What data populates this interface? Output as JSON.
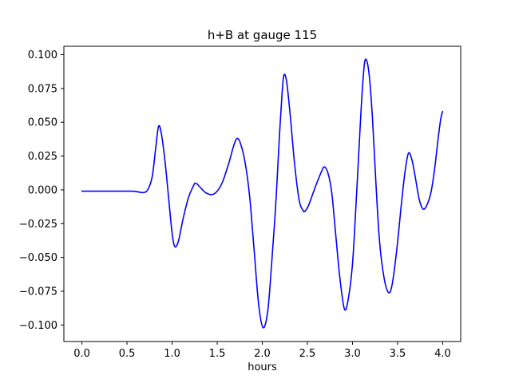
{
  "chart_data": {
    "type": "line",
    "title": "h+B at gauge 115",
    "xlabel": "hours",
    "ylabel": "",
    "grid": false,
    "legend": null,
    "line_color": "#0000ff",
    "line_width": 1.6,
    "background_color": "#ffffff",
    "axis_color": "#000000",
    "xlim": [
      -0.2,
      4.2
    ],
    "ylim": [
      -0.1122,
      0.1062
    ],
    "x_ticks": [
      0.0,
      0.5,
      1.0,
      1.5,
      2.0,
      2.5,
      3.0,
      3.5,
      4.0
    ],
    "x_tick_labels": [
      "0.0",
      "0.5",
      "1.0",
      "1.5",
      "2.0",
      "2.5",
      "3.0",
      "3.5",
      "4.0"
    ],
    "y_ticks": [
      0.1,
      0.075,
      0.05,
      0.025,
      0.0,
      -0.025,
      -0.05,
      -0.075,
      -0.1
    ],
    "y_tick_labels": [
      "0.100",
      "0.075",
      "0.050",
      "0.025",
      "0.000",
      "−0.025",
      "−0.050",
      "−0.075",
      "−0.100"
    ],
    "series": [
      {
        "name": "h+B",
        "x": [
          0.0,
          0.3,
          0.55,
          0.62,
          0.68,
          0.73,
          0.78,
          0.82,
          0.85,
          0.88,
          0.92,
          0.96,
          1.0,
          1.03,
          1.07,
          1.12,
          1.18,
          1.23,
          1.26,
          1.31,
          1.37,
          1.44,
          1.5,
          1.56,
          1.63,
          1.68,
          1.72,
          1.76,
          1.81,
          1.86,
          1.91,
          1.96,
          2.01,
          2.06,
          2.1,
          2.15,
          2.19,
          2.22,
          2.24,
          2.27,
          2.31,
          2.36,
          2.41,
          2.45,
          2.47,
          2.51,
          2.56,
          2.61,
          2.66,
          2.69,
          2.73,
          2.77,
          2.81,
          2.86,
          2.91,
          2.95,
          3.0,
          3.04,
          3.08,
          3.11,
          3.14,
          3.18,
          3.22,
          3.26,
          3.3,
          3.35,
          3.4,
          3.44,
          3.49,
          3.54,
          3.58,
          3.62,
          3.66,
          3.7,
          3.74,
          3.78,
          3.82,
          3.87,
          3.91,
          3.95,
          3.98,
          4.0
        ],
        "y": [
          -0.001,
          -0.001,
          -0.001,
          -0.0015,
          -0.002,
          0.0,
          0.01,
          0.032,
          0.047,
          0.042,
          0.022,
          -0.005,
          -0.032,
          -0.042,
          -0.038,
          -0.022,
          -0.006,
          0.002,
          0.005,
          0.002,
          -0.002,
          -0.0035,
          -0.001,
          0.006,
          0.02,
          0.032,
          0.038,
          0.034,
          0.02,
          -0.005,
          -0.045,
          -0.085,
          -0.102,
          -0.09,
          -0.058,
          -0.01,
          0.04,
          0.072,
          0.085,
          0.08,
          0.055,
          0.018,
          -0.008,
          -0.015,
          -0.016,
          -0.012,
          -0.003,
          0.006,
          0.014,
          0.017,
          0.012,
          -0.002,
          -0.03,
          -0.065,
          -0.088,
          -0.082,
          -0.055,
          -0.01,
          0.04,
          0.075,
          0.096,
          0.088,
          0.055,
          0.005,
          -0.038,
          -0.065,
          -0.076,
          -0.07,
          -0.045,
          -0.012,
          0.012,
          0.027,
          0.022,
          0.008,
          -0.007,
          -0.014,
          -0.012,
          -0.002,
          0.015,
          0.038,
          0.053,
          0.058
        ]
      }
    ]
  }
}
